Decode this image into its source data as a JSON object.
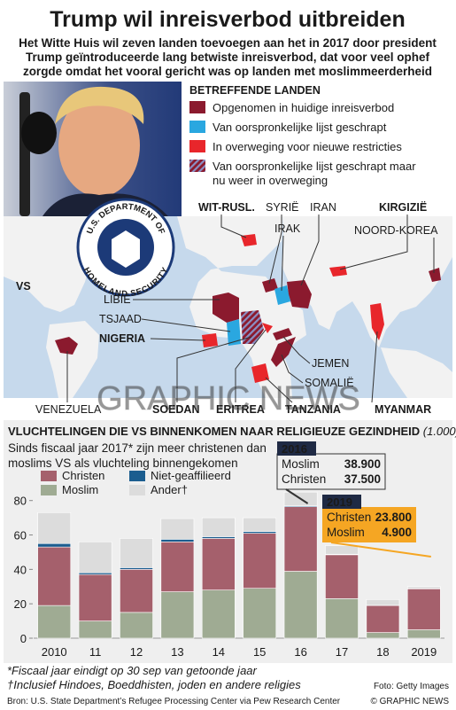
{
  "header": {
    "title": "Trump wil inreisverbod uitbreiden",
    "subtitle": [
      "Het Witte Huis wil zeven landen toevoegen aan het in 2017 door president",
      "Trump geïntroduceerde lang betwiste inreisverbod, dat voor veel ophef",
      "zorgde omdat het vooral gericht was op landen met moslimmeerderheid"
    ]
  },
  "seal": [
    "U.S. DEPARTMENT OF",
    "HOMELAND SECURITY"
  ],
  "map": {
    "legend": {
      "title": "Betreffende Landen",
      "items": [
        {
          "label": [
            "Opgenomen in huidige inreisverbod"
          ],
          "color": "#8b1a2e"
        },
        {
          "label": [
            "Van oorspronkelijke lijst geschrapt"
          ],
          "color": "#2aa7e0"
        },
        {
          "label": [
            "In overweging voor nieuwe restricties"
          ],
          "color": "#e8262b"
        },
        {
          "label": [
            "Van oorspronkelijke lijst geschrapt maar",
            "nu weer in overweging"
          ],
          "color": "hatch"
        }
      ]
    },
    "labels": [
      "WIT-RUSL.",
      "SYRIË",
      "IRAN",
      "KIRGIZIË",
      "IRAK",
      "NOORD-KOREA",
      "VS",
      "LIBIË",
      "TSJAAD",
      "NIGERIA",
      "JEMEN",
      "SOMALIË",
      "VENEZUELA",
      "SOEDAN",
      "ERITREA",
      "TANZANIA",
      "MYANMAR"
    ]
  },
  "watermark": "GRAPHIC NEWS",
  "chart_data": {
    "type": "stacked-bar",
    "title": "Vluchtelingen die VS binnenkomen naar religieuze gezindheid",
    "title_unit": "(1.000)",
    "subtitle": [
      "Sinds fiscaal jaar 2017* zijn meer christenen dan",
      "moslims VS als vluchteling binnengekomen"
    ],
    "categories": [
      "2010",
      "11",
      "12",
      "13",
      "14",
      "15",
      "16",
      "17",
      "18",
      "2019"
    ],
    "series": [
      {
        "name": "Moslim",
        "color": "#9fab93",
        "values": [
          19,
          10,
          15,
          27,
          28,
          29,
          38.9,
          23,
          3.3,
          4.9
        ]
      },
      {
        "name": "Christen",
        "color": "#a5606c",
        "values": [
          34,
          27,
          25,
          29,
          30,
          32,
          37.5,
          25.5,
          15.7,
          23.8
        ]
      },
      {
        "name": "Niet-geaffilieerd",
        "color": "#1b5d8f",
        "values": [
          2,
          1,
          1,
          1.5,
          1,
          1,
          0.5,
          0.3,
          0.1,
          0.2
        ]
      },
      {
        "name": "Ander†",
        "color": "#dcdcdc",
        "values": [
          18,
          18,
          17,
          12,
          11,
          8,
          8,
          5,
          3.4,
          1.1
        ]
      }
    ],
    "ylim": [
      0,
      85
    ],
    "yticks": [
      0,
      20,
      40,
      60,
      80
    ],
    "callouts": [
      {
        "year": "2016",
        "rows": [
          {
            "name": "Moslim",
            "label": "38.900"
          },
          {
            "name": "Christen",
            "label": "37.500"
          }
        ]
      },
      {
        "year": "2019",
        "rows": [
          {
            "name": "Christen",
            "label": "23.800"
          },
          {
            "name": "Moslim",
            "label": "4.900"
          }
        ]
      }
    ]
  },
  "footer": {
    "notes": [
      "*Fiscaal jaar eindigt op 30 sep van getoonde jaar",
      "†Inclusief Hindoes, Boeddhisten, joden en andere religies"
    ],
    "source": "Bron: U.S. State Department’s Refugee Processing Center via Pew Research Center",
    "photo_credit": "Foto: Getty Images",
    "credit": "© GRAPHIC NEWS"
  }
}
